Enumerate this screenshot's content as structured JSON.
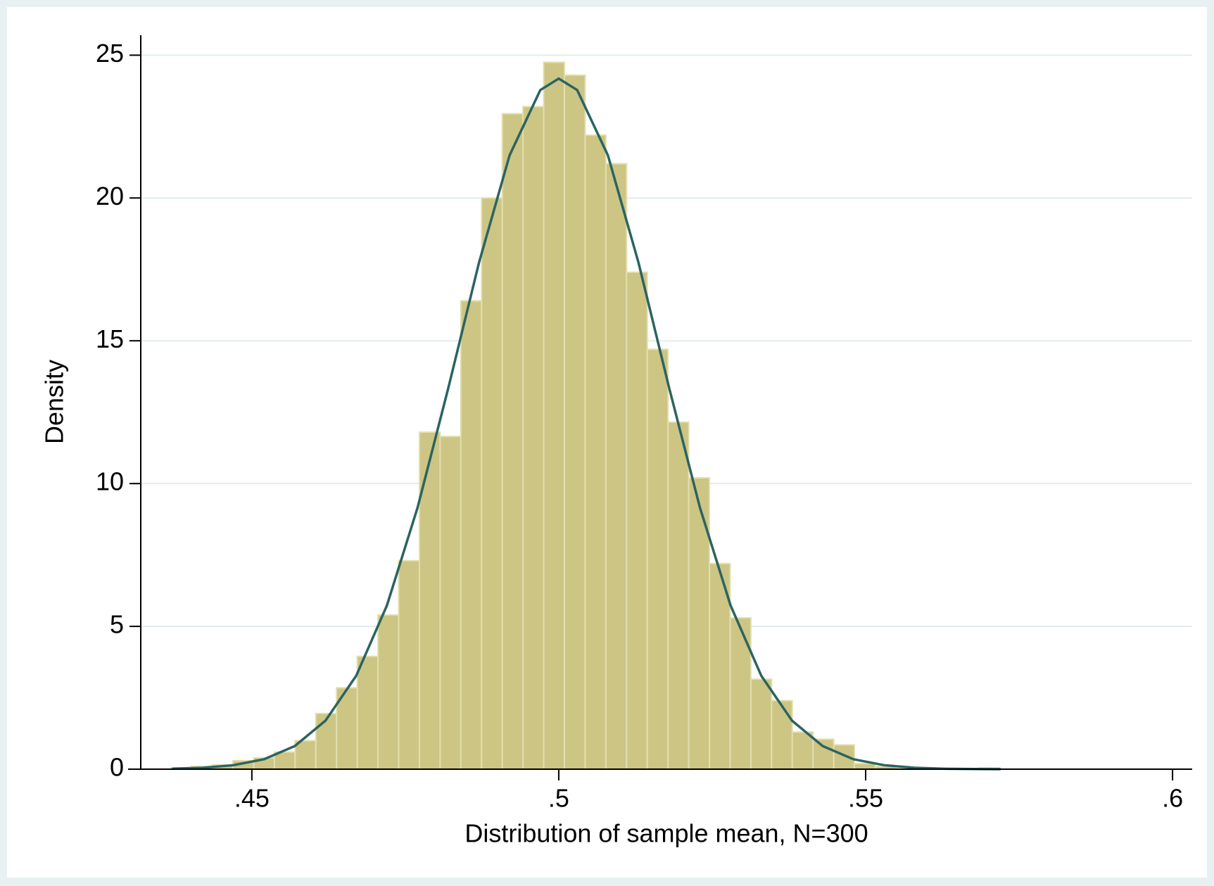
{
  "chart_data": {
    "type": "histogram",
    "xlabel": "Distribution of sample mean, N=300",
    "ylabel": "Density",
    "bins": [
      0.4368,
      0.440175,
      0.44355,
      0.446925,
      0.4503,
      0.453675,
      0.45705,
      0.460425,
      0.4638,
      0.467175,
      0.47055,
      0.473925,
      0.4773,
      0.480675,
      0.48405,
      0.487425,
      0.4908,
      0.494175,
      0.49755,
      0.500925,
      0.5043,
      0.507675,
      0.51105,
      0.514425,
      0.5178,
      0.521175,
      0.52455,
      0.527925,
      0.5313,
      0.534675,
      0.53805,
      0.541425,
      0.5448,
      0.548175,
      0.55155,
      0.554925,
      0.5583,
      0.561675,
      0.56505,
      0.568425,
      0.5718
    ],
    "values": [
      0.05,
      0.1,
      0.15,
      0.3,
      0.4,
      0.6,
      1.0,
      1.95,
      2.85,
      3.95,
      5.4,
      7.3,
      11.8,
      11.65,
      16.4,
      20.0,
      22.95,
      23.2,
      24.75,
      24.3,
      22.2,
      21.2,
      17.4,
      14.7,
      12.15,
      10.2,
      7.2,
      5.3,
      3.15,
      2.4,
      1.3,
      1.05,
      0.85,
      0.2,
      0.1,
      0.05,
      0.03,
      0.02,
      0.02,
      0.05
    ],
    "color": "#cdc584",
    "curve": {
      "color": "#2b6461",
      "x": [
        0.437,
        0.442,
        0.447,
        0.452,
        0.457,
        0.462,
        0.467,
        0.472,
        0.477,
        0.482,
        0.487,
        0.492,
        0.497,
        0.5,
        0.503,
        0.508,
        0.513,
        0.518,
        0.523,
        0.528,
        0.533,
        0.538,
        0.543,
        0.548,
        0.553,
        0.558,
        0.563,
        0.568,
        0.572
      ],
      "values": [
        0.016,
        0.05,
        0.14,
        0.35,
        0.81,
        1.7,
        3.27,
        5.73,
        9.16,
        13.34,
        17.73,
        21.5,
        23.78,
        24.18,
        23.78,
        21.5,
        17.73,
        13.34,
        9.16,
        5.73,
        3.27,
        1.7,
        0.81,
        0.35,
        0.14,
        0.05,
        0.016,
        0.005,
        0.0015
      ]
    },
    "xlim": [
      0.4319,
      0.6032
    ],
    "ylim": [
      0,
      25.7
    ],
    "xticks": [
      {
        "value": 0.45,
        "label": ".45"
      },
      {
        "value": 0.5,
        "label": ".5"
      },
      {
        "value": 0.55,
        "label": ".55"
      },
      {
        "value": 0.6,
        "label": ".6"
      }
    ],
    "yticks": [
      0,
      5,
      10,
      15,
      20,
      25
    ],
    "grid": true
  }
}
